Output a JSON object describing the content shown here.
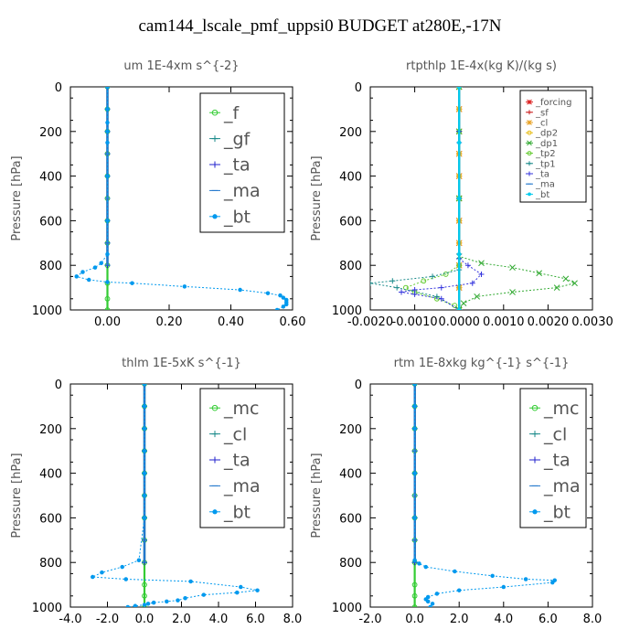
{
  "title": "cam144_lscale_pmf_uppsi0  BUDGET at280E,-17N",
  "chart_data": [
    {
      "type": "line",
      "title": "um   1E-4xm s^{-2}",
      "ylabel": "Pressure [hPa]",
      "xlim": [
        -0.12,
        0.6
      ],
      "ylim": [
        1000,
        0
      ],
      "xticks": [
        -0.2,
        0.0,
        0.2,
        0.4,
        0.6
      ],
      "xtick_labels": [
        "",
        "0.00",
        "0.20",
        "0.40",
        "0.60"
      ],
      "yticks": [
        0,
        200,
        400,
        600,
        800,
        1000
      ],
      "legend": {
        "position": "top-right",
        "font": 19
      },
      "series": [
        {
          "name": "_f",
          "color": "#33cc33",
          "marker": "circle",
          "x": [
            0,
            0,
            0,
            0,
            0,
            0,
            0,
            0,
            0,
            0,
            0,
            0
          ],
          "y": [
            0,
            100,
            200,
            300,
            400,
            500,
            600,
            700,
            800,
            880,
            950,
            1000
          ]
        },
        {
          "name": "_gf",
          "color": "#1a8a8a",
          "marker": "plus",
          "x": [
            0,
            0,
            0,
            0,
            0,
            0,
            0,
            0,
            0
          ],
          "y": [
            0,
            100,
            200,
            300,
            400,
            500,
            600,
            700,
            800
          ]
        },
        {
          "name": "_ta",
          "color": "#2222cc",
          "marker": "plus",
          "x": [
            0,
            0,
            0,
            0,
            0,
            0,
            0,
            0,
            0
          ],
          "y": [
            0,
            100,
            200,
            300,
            400,
            500,
            600,
            700,
            800
          ]
        },
        {
          "name": "_ma",
          "color": "#2277cc",
          "marker": "dash",
          "x": [
            0,
            0,
            0,
            0,
            0,
            0,
            0,
            0,
            0
          ],
          "y": [
            0,
            100,
            200,
            300,
            400,
            500,
            600,
            700,
            800
          ]
        },
        {
          "name": "_bt",
          "color": "#0099ee",
          "marker": "dot",
          "x": [
            0,
            0,
            0,
            0,
            0,
            0,
            0,
            0,
            -0.02,
            -0.04,
            -0.08,
            -0.1,
            -0.06,
            0.0,
            0.08,
            0.25,
            0.43,
            0.52,
            0.56,
            0.57,
            0.58,
            0.58,
            0.58,
            0.57,
            0.55
          ],
          "y": [
            0,
            100,
            160,
            200,
            250,
            400,
            600,
            750,
            790,
            810,
            830,
            850,
            865,
            875,
            880,
            895,
            910,
            925,
            935,
            945,
            955,
            965,
            975,
            985,
            1000
          ]
        }
      ]
    },
    {
      "type": "line",
      "title": "rtpthlp   1E-4x(kg K)/(kg s)",
      "ylabel": "Pressure [hPa]",
      "xlim": [
        -0.002,
        0.003
      ],
      "ylim": [
        1000,
        0
      ],
      "xticks": [
        -0.002,
        -0.001,
        0.0,
        0.001,
        0.002,
        0.003
      ],
      "xtick_labels": [
        "-0.0020",
        "-0.0010",
        "0.0000",
        "0.0010",
        "0.0020",
        "0.0030"
      ],
      "yticks": [
        0,
        200,
        400,
        600,
        800,
        1000
      ],
      "legend": {
        "position": "top-right",
        "font": 10
      },
      "series": [
        {
          "name": "_forcing",
          "color": "#dd2222",
          "marker": "star",
          "x": [
            0,
            0,
            0,
            0,
            0,
            0,
            0,
            0,
            0,
            0,
            0
          ],
          "y": [
            0,
            100,
            200,
            300,
            400,
            500,
            600,
            700,
            800,
            900,
            1000
          ]
        },
        {
          "name": "_sf",
          "color": "#cc2222",
          "marker": "plus",
          "x": [
            0,
            0,
            0,
            0,
            0,
            0,
            0,
            0,
            0,
            0,
            0
          ],
          "y": [
            0,
            100,
            200,
            300,
            400,
            500,
            600,
            700,
            800,
            900,
            1000
          ]
        },
        {
          "name": "_cl",
          "color": "#e8a020",
          "marker": "star",
          "x": [
            0,
            0,
            0,
            0,
            0,
            0,
            0,
            0,
            0,
            0,
            0
          ],
          "y": [
            0,
            100,
            200,
            300,
            400,
            500,
            600,
            700,
            800,
            900,
            1000
          ]
        },
        {
          "name": "_dp2",
          "color": "#e8c020",
          "marker": "circle",
          "x": [
            0,
            0,
            0,
            0,
            0,
            0,
            0,
            0,
            0,
            0,
            0
          ],
          "y": [
            0,
            100,
            200,
            300,
            400,
            500,
            600,
            700,
            800,
            900,
            1000
          ]
        },
        {
          "name": "_dp1",
          "color": "#33aa33",
          "marker": "x",
          "x": [
            0,
            0,
            0,
            0,
            0.0005,
            0.0012,
            0.0018,
            0.0024,
            0.0026,
            0.0022,
            0.0012,
            0.0004,
            0.0001,
            0
          ],
          "y": [
            0,
            200,
            500,
            760,
            790,
            810,
            835,
            860,
            880,
            900,
            920,
            940,
            970,
            1000
          ]
        },
        {
          "name": "_tp2",
          "color": "#66cc33",
          "marker": "circle",
          "x": [
            0,
            0,
            0,
            0,
            -0.0003,
            -0.0008,
            -0.0012,
            -0.001,
            -0.0005,
            -0.0001,
            0
          ],
          "y": [
            0,
            200,
            500,
            800,
            840,
            870,
            900,
            920,
            950,
            980,
            1000
          ]
        },
        {
          "name": "_tp1",
          "color": "#1a8a8a",
          "marker": "plus",
          "x": [
            0,
            0,
            0,
            0,
            -0.0006,
            -0.0015,
            -0.002,
            -0.0014,
            -0.0005,
            0
          ],
          "y": [
            0,
            200,
            500,
            820,
            850,
            870,
            880,
            900,
            940,
            1000
          ]
        },
        {
          "name": "_ta",
          "color": "#3333dd",
          "marker": "plus",
          "x": [
            0,
            0,
            0,
            0,
            0.0002,
            0.0005,
            0.0003,
            -0.0004,
            -0.001,
            -0.0013,
            -0.001,
            -0.0004,
            0
          ],
          "y": [
            0,
            200,
            500,
            770,
            800,
            840,
            880,
            900,
            910,
            920,
            930,
            950,
            1000
          ]
        },
        {
          "name": "_ma",
          "color": "#2277cc",
          "marker": "dash",
          "x": [
            0,
            0,
            0,
            0,
            0
          ],
          "y": [
            0,
            250,
            500,
            750,
            1000
          ]
        },
        {
          "name": "_bt",
          "color": "#00ccee",
          "marker": "dot",
          "x": [
            0,
            0,
            0,
            0,
            0
          ],
          "y": [
            0,
            250,
            500,
            750,
            1000
          ]
        }
      ]
    },
    {
      "type": "line",
      "title": "thlm   1E-5xK s^{-1}",
      "ylabel": "Pressure [hPa]",
      "xlim": [
        -4,
        8
      ],
      "ylim": [
        1000,
        0
      ],
      "xticks": [
        -4,
        -2,
        0,
        2,
        4,
        6,
        8
      ],
      "xtick_labels": [
        "-4.0",
        "-2.0",
        "0.0",
        "2.0",
        "4.0",
        "6.0",
        "8.0"
      ],
      "yticks": [
        0,
        200,
        400,
        600,
        800,
        1000
      ],
      "legend": {
        "position": "top-right",
        "font": 19
      },
      "series": [
        {
          "name": "_mc",
          "color": "#33cc33",
          "marker": "circle",
          "x": [
            0,
            0,
            0,
            0,
            0,
            0,
            0,
            0,
            0,
            0,
            0,
            0
          ],
          "y": [
            0,
            100,
            200,
            300,
            400,
            500,
            600,
            700,
            800,
            900,
            950,
            1000
          ]
        },
        {
          "name": "_cl",
          "color": "#1a8a8a",
          "marker": "plus",
          "x": [
            0,
            0,
            0,
            0,
            0,
            0,
            0,
            0,
            0
          ],
          "y": [
            0,
            100,
            200,
            300,
            400,
            500,
            600,
            700,
            800
          ]
        },
        {
          "name": "_ta",
          "color": "#2222cc",
          "marker": "plus",
          "x": [
            0,
            0,
            0,
            0,
            0,
            0,
            0,
            0,
            0
          ],
          "y": [
            0,
            100,
            200,
            300,
            400,
            500,
            600,
            700,
            800
          ]
        },
        {
          "name": "_ma",
          "color": "#2277cc",
          "marker": "dash",
          "x": [
            0,
            0,
            0,
            0,
            0,
            0,
            0,
            0,
            0
          ],
          "y": [
            0,
            100,
            200,
            300,
            400,
            500,
            600,
            700,
            800
          ]
        },
        {
          "name": "_bt",
          "color": "#0099ee",
          "marker": "dot",
          "x": [
            0,
            0,
            0,
            0,
            0,
            0,
            0,
            -0.3,
            -1.2,
            -2.3,
            -2.8,
            -1.0,
            2.5,
            5.2,
            6.1,
            5.0,
            3.2,
            2.2,
            1.8,
            1.2,
            0.5,
            0.2,
            0.0,
            -0.5,
            -0.9
          ],
          "y": [
            0,
            100,
            200,
            300,
            400,
            500,
            600,
            790,
            820,
            845,
            865,
            875,
            885,
            910,
            925,
            935,
            945,
            960,
            970,
            975,
            980,
            985,
            990,
            995,
            1000
          ]
        }
      ]
    },
    {
      "type": "line",
      "title": "rtm   1E-8xkg kg^{-1} s^{-1}",
      "ylabel": "Pressure [hPa]",
      "xlim": [
        -2,
        8
      ],
      "ylim": [
        1000,
        0
      ],
      "xticks": [
        -2,
        0,
        2,
        4,
        6,
        8
      ],
      "xtick_labels": [
        "-2.0",
        "0.0",
        "2.0",
        "4.0",
        "6.0",
        "8.0"
      ],
      "yticks": [
        0,
        200,
        400,
        600,
        800,
        1000
      ],
      "legend": {
        "position": "top-right",
        "font": 19
      },
      "series": [
        {
          "name": "_mc",
          "color": "#33cc33",
          "marker": "circle",
          "x": [
            0,
            0,
            0,
            0,
            0,
            0,
            0,
            0,
            0,
            0,
            0,
            0
          ],
          "y": [
            0,
            100,
            200,
            300,
            400,
            500,
            600,
            700,
            800,
            900,
            950,
            1000
          ]
        },
        {
          "name": "_cl",
          "color": "#1a8a8a",
          "marker": "plus",
          "x": [
            0,
            0,
            0,
            0,
            0,
            0,
            0,
            0,
            0
          ],
          "y": [
            0,
            100,
            200,
            300,
            400,
            500,
            600,
            700,
            800
          ]
        },
        {
          "name": "_ta",
          "color": "#2222cc",
          "marker": "plus",
          "x": [
            0,
            0,
            0,
            0,
            0,
            0,
            0,
            0,
            0
          ],
          "y": [
            0,
            100,
            200,
            300,
            400,
            500,
            600,
            700,
            800
          ]
        },
        {
          "name": "_ma",
          "color": "#2277cc",
          "marker": "dash",
          "x": [
            0,
            0,
            0,
            0,
            0,
            0,
            0,
            0,
            0
          ],
          "y": [
            0,
            100,
            200,
            300,
            400,
            500,
            600,
            700,
            800
          ]
        },
        {
          "name": "_bt",
          "color": "#0099ee",
          "marker": "dot",
          "x": [
            0,
            0,
            0,
            0,
            0,
            0,
            0.2,
            0.5,
            1.8,
            3.5,
            5.0,
            6.3,
            6.2,
            4.0,
            2.0,
            1.0,
            0.6,
            0.5,
            0.6,
            0.8,
            0.7
          ],
          "y": [
            0,
            100,
            200,
            400,
            600,
            790,
            805,
            820,
            840,
            860,
            875,
            880,
            890,
            910,
            925,
            940,
            955,
            965,
            975,
            985,
            1000
          ]
        }
      ]
    }
  ]
}
